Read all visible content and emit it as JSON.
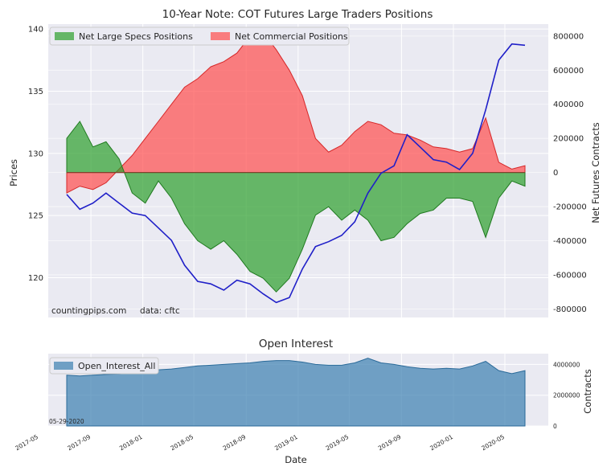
{
  "chart_data": [
    {
      "type": "area",
      "title": "10-Year Note: COT Futures Large Traders Positions",
      "ylabel_left": "Prices",
      "ylabel_right": "Net Futures Contracts",
      "xlabel": "Date",
      "ylim_left": [
        116.8,
        140.4
      ],
      "ylim_right": [
        -850000,
        870000
      ],
      "left_ticks": [
        "120",
        "125",
        "130",
        "135",
        "140"
      ],
      "right_ticks": [
        "-800000",
        "-600000",
        "-400000",
        "-200000",
        "0",
        "200000",
        "400000",
        "600000",
        "800000"
      ],
      "grid": true,
      "legend": "top-left",
      "annotation": "countingpips.com     data: cftc",
      "series": [
        {
          "name": "Net Large Specs Positions",
          "kind": "area",
          "color": "#2ca02c",
          "x": [
            "2017-06",
            "2017-07",
            "2017-08",
            "2017-09",
            "2017-10",
            "2017-11",
            "2017-12",
            "2018-01",
            "2018-02",
            "2018-03",
            "2018-04",
            "2018-05",
            "2018-06",
            "2018-07",
            "2018-08",
            "2018-09",
            "2018-10",
            "2018-11",
            "2018-12",
            "2019-01",
            "2019-02",
            "2019-03",
            "2019-04",
            "2019-05",
            "2019-06",
            "2019-07",
            "2019-08",
            "2019-09",
            "2019-10",
            "2019-11",
            "2019-12",
            "2020-01",
            "2020-02",
            "2020-03",
            "2020-04",
            "2020-05"
          ],
          "values": [
            200000,
            300000,
            150000,
            180000,
            80000,
            -120000,
            -180000,
            -50000,
            -150000,
            -300000,
            -400000,
            -450000,
            -400000,
            -480000,
            -580000,
            -620000,
            -700000,
            -620000,
            -450000,
            -250000,
            -200000,
            -280000,
            -220000,
            -280000,
            -400000,
            -380000,
            -300000,
            -240000,
            -220000,
            -150000,
            -150000,
            -170000,
            -380000,
            -150000,
            -50000,
            -80000
          ]
        },
        {
          "name": "Net Commercial Positions",
          "kind": "area",
          "color": "#ff4d4d",
          "x": [
            "2017-06",
            "2017-07",
            "2017-08",
            "2017-09",
            "2017-10",
            "2017-11",
            "2017-12",
            "2018-01",
            "2018-02",
            "2018-03",
            "2018-04",
            "2018-05",
            "2018-06",
            "2018-07",
            "2018-08",
            "2018-09",
            "2018-10",
            "2018-11",
            "2018-12",
            "2019-01",
            "2019-02",
            "2019-03",
            "2019-04",
            "2019-05",
            "2019-06",
            "2019-07",
            "2019-08",
            "2019-09",
            "2019-10",
            "2019-11",
            "2019-12",
            "2020-01",
            "2020-02",
            "2020-03",
            "2020-04",
            "2020-05"
          ],
          "values": [
            -120000,
            -80000,
            -100000,
            -60000,
            20000,
            100000,
            200000,
            300000,
            400000,
            500000,
            550000,
            620000,
            650000,
            700000,
            800000,
            820000,
            720000,
            600000,
            450000,
            200000,
            120000,
            160000,
            240000,
            300000,
            280000,
            230000,
            220000,
            190000,
            150000,
            140000,
            120000,
            140000,
            320000,
            60000,
            20000,
            40000
          ]
        },
        {
          "name": "Price",
          "kind": "line",
          "axis": "left",
          "color": "#1f1fc8",
          "x": [
            "2017-06",
            "2017-07",
            "2017-08",
            "2017-09",
            "2017-10",
            "2017-11",
            "2017-12",
            "2018-01",
            "2018-02",
            "2018-03",
            "2018-04",
            "2018-05",
            "2018-06",
            "2018-07",
            "2018-08",
            "2018-09",
            "2018-10",
            "2018-11",
            "2018-12",
            "2019-01",
            "2019-02",
            "2019-03",
            "2019-04",
            "2019-05",
            "2019-06",
            "2019-07",
            "2019-08",
            "2019-09",
            "2019-10",
            "2019-11",
            "2019-12",
            "2020-01",
            "2020-02",
            "2020-03",
            "2020-04",
            "2020-05"
          ],
          "values": [
            126.7,
            125.5,
            126.0,
            126.8,
            126.0,
            125.2,
            125.0,
            124.0,
            123.0,
            121.0,
            119.7,
            119.5,
            119.0,
            119.8,
            119.5,
            118.7,
            118.0,
            118.4,
            120.7,
            122.5,
            122.9,
            123.4,
            124.5,
            126.8,
            128.4,
            129.0,
            131.5,
            130.5,
            129.5,
            129.3,
            128.7,
            130.0,
            133.5,
            137.5,
            138.8,
            138.7
          ]
        }
      ]
    },
    {
      "type": "area",
      "title": "Open Interest",
      "ylabel_right": "Contracts",
      "xlabel": "Date",
      "ylim": [
        0,
        4700000
      ],
      "right_ticks": [
        "0",
        "2000000",
        "4000000"
      ],
      "legend": "top-left",
      "annotation": "05-29-2020",
      "x_ticks": [
        "2017-05",
        "2017-09",
        "2018-01",
        "2018-05",
        "2018-09",
        "2019-01",
        "2019-05",
        "2019-09",
        "2020-01",
        "2020-05"
      ],
      "series": [
        {
          "name": "Open_Interest_All",
          "color": "#3b7fb0",
          "x": [
            "2017-06",
            "2017-07",
            "2017-08",
            "2017-09",
            "2017-10",
            "2017-11",
            "2017-12",
            "2018-01",
            "2018-02",
            "2018-03",
            "2018-04",
            "2018-05",
            "2018-06",
            "2018-07",
            "2018-08",
            "2018-09",
            "2018-10",
            "2018-11",
            "2018-12",
            "2019-01",
            "2019-02",
            "2019-03",
            "2019-04",
            "2019-05",
            "2019-06",
            "2019-07",
            "2019-08",
            "2019-09",
            "2019-10",
            "2019-11",
            "2019-12",
            "2020-01",
            "2020-02",
            "2020-03",
            "2020-04",
            "2020-05"
          ],
          "values": [
            3300000,
            3250000,
            3300000,
            3350000,
            3380000,
            3450000,
            3550000,
            3650000,
            3700000,
            3800000,
            3900000,
            3950000,
            4000000,
            4050000,
            4100000,
            4200000,
            4250000,
            4250000,
            4150000,
            4000000,
            3950000,
            3950000,
            4100000,
            4400000,
            4100000,
            4000000,
            3850000,
            3750000,
            3700000,
            3750000,
            3700000,
            3900000,
            4200000,
            3600000,
            3400000,
            3600000
          ]
        }
      ]
    }
  ]
}
